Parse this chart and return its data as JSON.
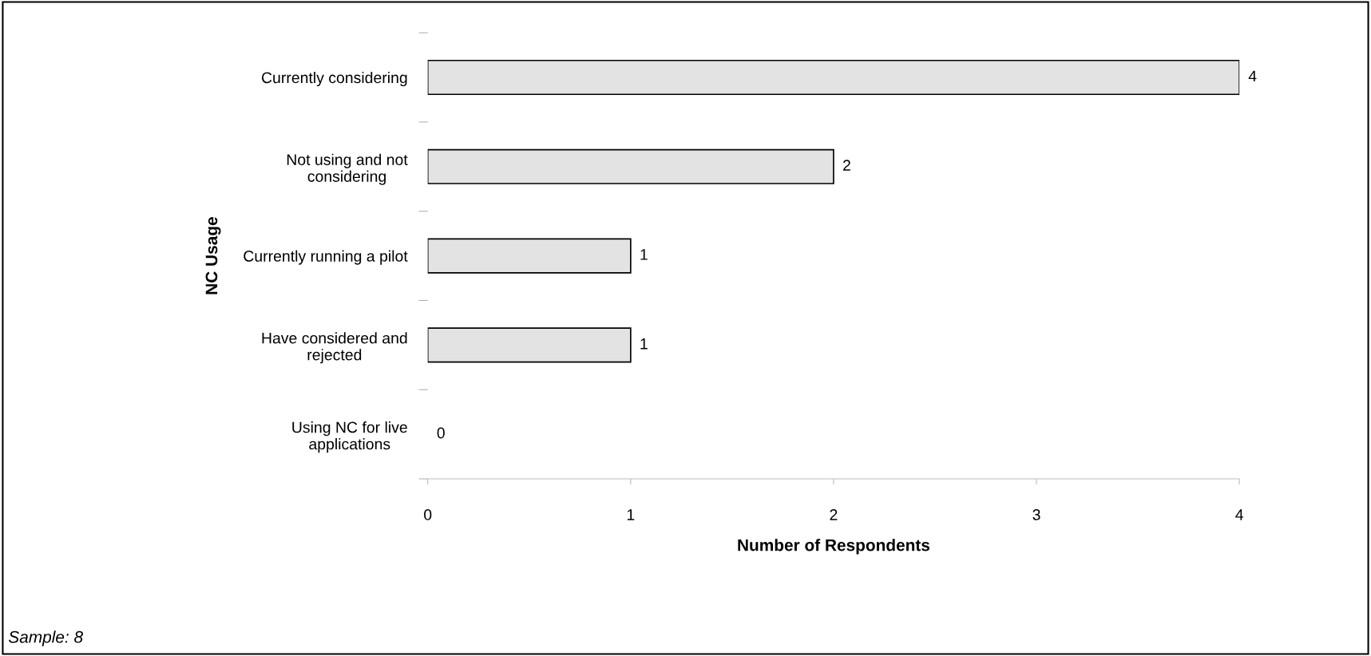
{
  "chart_data": {
    "type": "bar",
    "orientation": "horizontal",
    "categories": [
      "Currently considering",
      "Not using and not\nconsidering",
      "Currently running a pilot",
      "Have considered and\nrejected",
      "Using NC for live\napplications"
    ],
    "values": [
      4,
      2,
      1,
      1,
      0
    ],
    "color": "#e3e3e3",
    "xlabel": "Number of Respondents",
    "ylabel": "NC Usage",
    "xlim": [
      0,
      4
    ],
    "xticks": [
      0,
      1,
      2,
      3,
      4
    ],
    "grid": false,
    "data_labels": true,
    "annotations": [
      "Sample: 8"
    ]
  }
}
